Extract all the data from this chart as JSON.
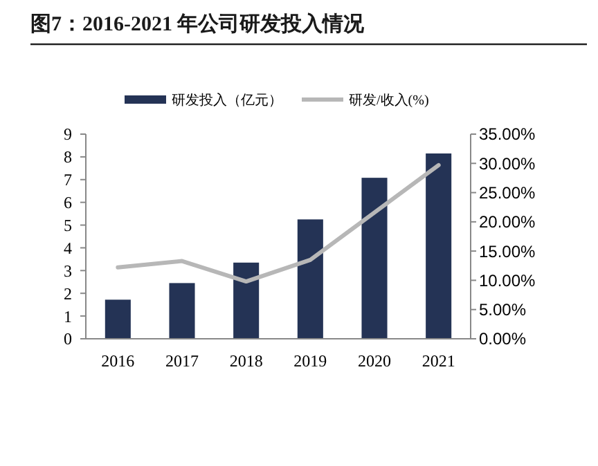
{
  "chart_data": {
    "type": "bar",
    "title": "图7：2016-2021 年公司研发投入情况",
    "categories": [
      "2016",
      "2017",
      "2018",
      "2019",
      "2020",
      "2021"
    ],
    "series": [
      {
        "name": "研发投入（亿元）",
        "color": "#243355",
        "values": [
          1.72,
          2.45,
          3.35,
          5.25,
          7.08,
          8.15
        ]
      },
      {
        "name": "研发/收入(%)",
        "type": "line",
        "axis": "y2",
        "color": "#b7b7b7",
        "values": [
          12.2,
          13.3,
          9.8,
          13.5,
          21.6,
          29.7
        ]
      }
    ],
    "ylim": [
      0,
      9
    ],
    "yticks": [
      0,
      1,
      2,
      3,
      4,
      5,
      6,
      7,
      8,
      9
    ],
    "y2lim": [
      0,
      35
    ],
    "y2ticks": [
      {
        "value": 0,
        "label": "0.00%"
      },
      {
        "value": 5,
        "label": "5.00%"
      },
      {
        "value": 10,
        "label": "10.00%"
      },
      {
        "value": 15,
        "label": "15.00%"
      },
      {
        "value": 20,
        "label": "20.00%"
      },
      {
        "value": 25,
        "label": "25.00%"
      },
      {
        "value": 30,
        "label": "30.00%"
      },
      {
        "value": 35,
        "label": "35.00%"
      }
    ],
    "legend": "top",
    "grid": false
  }
}
